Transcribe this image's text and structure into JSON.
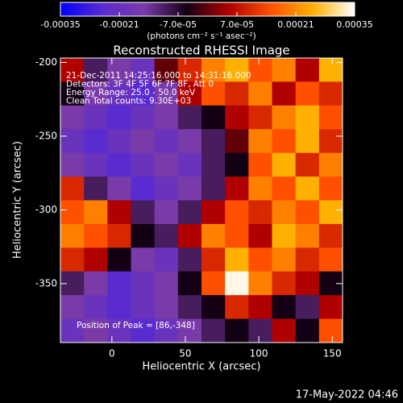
{
  "chart_data": {
    "type": "heatmap",
    "title": "Reconstructed RHESSI Image",
    "x_label": "Heliocentric X (arcsec)",
    "y_label": "Heliocentric Y (arcsec)",
    "xlim": [
      -35,
      157
    ],
    "ylim": [
      -390,
      -197
    ],
    "xticks": [
      0,
      50,
      100,
      150
    ],
    "yticks": [
      -200,
      -250,
      -300,
      -350
    ],
    "colorbar": {
      "label": "(photons cm⁻² s⁻¹ asec⁻²)",
      "clim": [
        -0.00035,
        0.00035
      ],
      "ticks": [
        -0.00035,
        -0.00021,
        {
          "value": -7e-05,
          "label": "-7.0e-05"
        },
        {
          "value": 7e-05,
          "label": "7.0e-05"
        },
        0.00021,
        0.00035
      ]
    },
    "colorscale": [
      "#0000ff",
      "#5a2bd0",
      "#7a3aa8",
      "#140014",
      "#b00000",
      "#ff5000",
      "#ffb000",
      "#ffffff"
    ],
    "annotations": [
      "21-Dec-2011 14:25:16.000 to 14:31:16.000",
      "Detectors: 3F 4F 5F 6F 7F 8F, Att 0",
      "Energy Range: 25.0 - 50.0 keV",
      "Clean     Total counts: 9.30E+03"
    ],
    "peak_label": "Position of Peak = [86,-348]",
    "timestamp": "17-May-2022 04:46",
    "z": [
      [
        5e-05,
        -0.0001,
        -0.00015,
        -0.0002,
        0,
        0.0001,
        0.0002,
        0.00025,
        0.00015,
        0.0002,
        5e-05,
        0.00025
      ],
      [
        -5e-05,
        -0.00015,
        -0.0002,
        -0.00025,
        -0.00015,
        5e-05,
        0.00015,
        0.0001,
        0.0002,
        5e-05,
        0.00015,
        0.0001
      ],
      [
        -0.00015,
        -0.0002,
        -0.00025,
        -0.0002,
        -0.00015,
        -0.0001,
        -5e-05,
        5e-05,
        0.0001,
        0.0002,
        0.00025,
        0.00015
      ],
      [
        -0.0002,
        -0.00025,
        -0.0002,
        -0.00015,
        -0.0002,
        -0.00015,
        -0.0001,
        0,
        0.0002,
        0.00015,
        0.00025,
        0.0001
      ],
      [
        -0.00015,
        -0.0002,
        -0.00025,
        -0.0002,
        -0.00015,
        -0.0002,
        -0.0001,
        -5e-05,
        0.00015,
        0.00025,
        0.0001,
        0.0002
      ],
      [
        0.0001,
        -0.0001,
        -0.00015,
        -0.00025,
        -0.0002,
        -0.00015,
        -0.0001,
        5e-05,
        0.0002,
        0.00015,
        0.00025,
        0.00015
      ],
      [
        0.00015,
        0.0002,
        5e-05,
        -0.0001,
        -0.00015,
        -0.0001,
        5e-05,
        0.00015,
        0.0001,
        0.0002,
        0.00015,
        0.00025
      ],
      [
        0.0002,
        0.00015,
        0.0001,
        -5e-05,
        -0.0001,
        5e-05,
        0.0002,
        0.00015,
        5e-05,
        0.00025,
        0.0002,
        0.0001
      ],
      [
        0.0001,
        5e-05,
        -5e-05,
        -0.00015,
        -0.0002,
        -0.0001,
        0.0001,
        0.00025,
        0.00015,
        0.0002,
        0.0001,
        0.00015
      ],
      [
        -0.0001,
        -0.00015,
        -0.00025,
        -0.0002,
        -0.00015,
        -5e-05,
        0.00015,
        0.00034,
        0.0002,
        0.0001,
        5e-05,
        -5e-05
      ],
      [
        -0.00015,
        -0.0002,
        -0.00025,
        -0.0002,
        -0.00015,
        -0.0001,
        -5e-05,
        0.0001,
        5e-05,
        -5e-05,
        -0.0001,
        5e-05
      ],
      [
        -0.0002,
        -0.00015,
        -0.0002,
        -0.00025,
        -0.0002,
        -0.00015,
        -0.0001,
        -5e-05,
        -0.0001,
        5e-05,
        -5e-05,
        0.00015
      ]
    ]
  }
}
